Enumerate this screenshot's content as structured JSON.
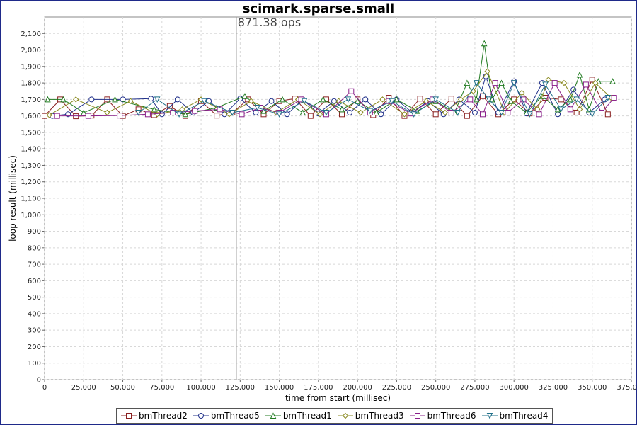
{
  "chart_data": {
    "type": "line",
    "title": "scimark.sparse.small",
    "xlabel": "time from start (millisec)",
    "ylabel": "loop result (millisec)",
    "xlim": [
      0,
      375000
    ],
    "ylim": [
      0,
      2200
    ],
    "x_ticks": [
      "0",
      "25,000",
      "50,000",
      "75,000",
      "100,000",
      "125,000",
      "150,000",
      "175,000",
      "200,000",
      "225,000",
      "250,000",
      "275,000",
      "300,000",
      "325,000",
      "350,000",
      "375,000"
    ],
    "y_ticks": [
      "0",
      "100",
      "200",
      "300",
      "400",
      "500",
      "600",
      "700",
      "800",
      "900",
      "1,000",
      "1,100",
      "1,200",
      "1,300",
      "1,400",
      "1,500",
      "1,600",
      "1,700",
      "1,800",
      "1,900",
      "2,000",
      "2,100"
    ],
    "grid": true,
    "legend_position": "bottom",
    "marker_line": {
      "x": 122500,
      "label": "871.38 ops"
    },
    "series": [
      {
        "name": "bmThread2",
        "color": "#8a2020",
        "marker": "square",
        "x": [
          0,
          10000,
          20000,
          30000,
          40000,
          50000,
          60000,
          70000,
          80000,
          90000,
          100000,
          110000,
          120000,
          130000,
          140000,
          150000,
          160000,
          170000,
          180000,
          190000,
          200000,
          210000,
          220000,
          230000,
          240000,
          250000,
          260000,
          270000,
          280000,
          290000,
          300000,
          310000,
          320000,
          330000,
          340000,
          350000,
          360000
        ],
        "values": [
          1600,
          1700,
          1598,
          1602,
          1700,
          1600,
          1640,
          1605,
          1660,
          1600,
          1690,
          1602,
          1620,
          1700,
          1610,
          1690,
          1705,
          1600,
          1700,
          1610,
          1700,
          1605,
          1710,
          1600,
          1705,
          1610,
          1705,
          1600,
          1720,
          1610,
          1700,
          1615,
          1710,
          1700,
          1620,
          1820,
          1610
        ]
      },
      {
        "name": "bmThread5",
        "color": "#20308a",
        "marker": "circle",
        "x": [
          5000,
          15000,
          30000,
          50000,
          68000,
          75000,
          85000,
          95000,
          105000,
          115000,
          125000,
          135000,
          145000,
          155000,
          165000,
          175000,
          185000,
          195000,
          205000,
          215000,
          225000,
          235000,
          245000,
          255000,
          265000,
          275000,
          282000,
          290000,
          300000,
          308000,
          318000,
          328000,
          338000,
          348000,
          358000
        ],
        "values": [
          1600,
          1610,
          1700,
          1700,
          1705,
          1610,
          1700,
          1620,
          1690,
          1610,
          1705,
          1620,
          1690,
          1610,
          1700,
          1615,
          1690,
          1620,
          1700,
          1610,
          1700,
          1620,
          1690,
          1610,
          1700,
          1620,
          1840,
          1620,
          1810,
          1615,
          1800,
          1610,
          1760,
          1620,
          1700
        ]
      },
      {
        "name": "bmThread1",
        "color": "#1f7a1f",
        "marker": "triangle-up",
        "x": [
          2000,
          12000,
          25000,
          45000,
          70000,
          90000,
          110000,
          128000,
          140000,
          152000,
          165000,
          178000,
          190000,
          200000,
          212000,
          225000,
          238000,
          250000,
          262000,
          270000,
          276000,
          281000,
          286000,
          292000,
          298000,
          308000,
          318000,
          328000,
          336000,
          342000,
          348000,
          354000,
          363000
        ],
        "values": [
          1700,
          1700,
          1620,
          1700,
          1640,
          1610,
          1650,
          1720,
          1630,
          1700,
          1620,
          1700,
          1640,
          1690,
          1620,
          1700,
          1630,
          1690,
          1620,
          1800,
          1700,
          2040,
          1700,
          1800,
          1690,
          1620,
          1720,
          1640,
          1700,
          1850,
          1640,
          1810,
          1810
        ]
      },
      {
        "name": "bmThread3",
        "color": "#8a8a20",
        "marker": "diamond",
        "x": [
          3000,
          20000,
          40000,
          55000,
          72000,
          88000,
          100000,
          118000,
          132000,
          148000,
          162000,
          176000,
          188000,
          202000,
          216000,
          230000,
          244000,
          256000,
          266000,
          274000,
          283000,
          294000,
          305000,
          315000,
          322000,
          332000,
          342000,
          352000,
          362000
        ],
        "values": [
          1605,
          1700,
          1620,
          1690,
          1610,
          1640,
          1700,
          1610,
          1690,
          1620,
          1700,
          1610,
          1690,
          1620,
          1700,
          1610,
          1690,
          1620,
          1700,
          1750,
          1870,
          1620,
          1740,
          1640,
          1820,
          1800,
          1640,
          1800,
          1710
        ]
      },
      {
        "name": "bmThread6",
        "color": "#8a208a",
        "marker": "square",
        "x": [
          8000,
          28000,
          48000,
          66000,
          82000,
          96000,
          112000,
          126000,
          138000,
          150000,
          164000,
          180000,
          196000,
          208000,
          220000,
          234000,
          248000,
          260000,
          272000,
          280000,
          288000,
          296000,
          306000,
          316000,
          326000,
          336000,
          346000,
          356000,
          364000
        ],
        "values": [
          1600,
          1600,
          1602,
          1610,
          1620,
          1630,
          1640,
          1610,
          1650,
          1620,
          1700,
          1610,
          1750,
          1620,
          1690,
          1615,
          1700,
          1620,
          1700,
          1610,
          1800,
          1620,
          1700,
          1610,
          1800,
          1640,
          1790,
          1620,
          1710
        ]
      },
      {
        "name": "bmThread4",
        "color": "#20708a",
        "marker": "triangle-down",
        "x": [
          60000,
          72000,
          86000,
          102000,
          120000,
          136000,
          150000,
          166000,
          180000,
          194000,
          208000,
          222000,
          236000,
          250000,
          264000,
          276000,
          284000,
          292000,
          300000,
          310000,
          320000,
          330000,
          340000,
          350000,
          360000
        ],
        "values": [
          1620,
          1700,
          1610,
          1690,
          1620,
          1650,
          1610,
          1690,
          1620,
          1700,
          1630,
          1690,
          1610,
          1700,
          1620,
          1800,
          1700,
          1620,
          1800,
          1610,
          1790,
          1640,
          1700,
          1610,
          1710
        ]
      }
    ]
  }
}
